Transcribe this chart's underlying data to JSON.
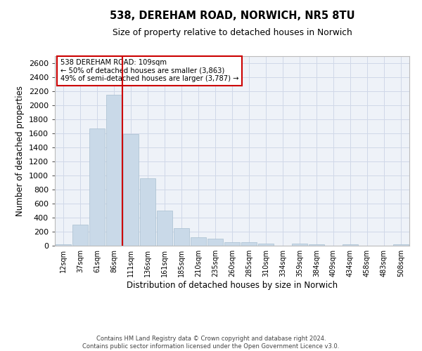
{
  "title_line1": "538, DEREHAM ROAD, NORWICH, NR5 8TU",
  "title_line2": "Size of property relative to detached houses in Norwich",
  "xlabel": "Distribution of detached houses by size in Norwich",
  "ylabel": "Number of detached properties",
  "footer_line1": "Contains HM Land Registry data © Crown copyright and database right 2024.",
  "footer_line2": "Contains public sector information licensed under the Open Government Licence v3.0.",
  "property_label": "538 DEREHAM ROAD: 109sqm",
  "annotation_line1": "← 50% of detached houses are smaller (3,863)",
  "annotation_line2": "49% of semi-detached houses are larger (3,787) →",
  "bar_color": "#c9d9e8",
  "bar_edge_color": "#a8bfd0",
  "vline_color": "#cc0000",
  "grid_color": "#d0d8e8",
  "bg_color": "#eef2f8",
  "categories": [
    "12sqm",
    "37sqm",
    "61sqm",
    "86sqm",
    "111sqm",
    "136sqm",
    "161sqm",
    "185sqm",
    "210sqm",
    "235sqm",
    "260sqm",
    "285sqm",
    "310sqm",
    "334sqm",
    "359sqm",
    "384sqm",
    "409sqm",
    "434sqm",
    "458sqm",
    "483sqm",
    "508sqm"
  ],
  "values": [
    25,
    300,
    1670,
    2150,
    1590,
    960,
    505,
    250,
    120,
    100,
    50,
    50,
    35,
    0,
    35,
    25,
    0,
    25,
    0,
    0,
    25
  ],
  "ylim": [
    0,
    2700
  ],
  "yticks": [
    0,
    200,
    400,
    600,
    800,
    1000,
    1200,
    1400,
    1600,
    1800,
    2000,
    2200,
    2400,
    2600
  ],
  "vline_x": 3.48
}
